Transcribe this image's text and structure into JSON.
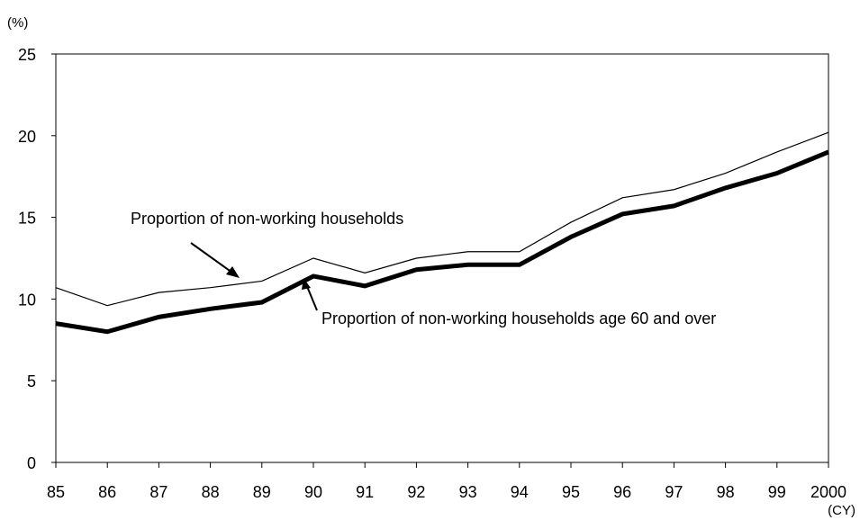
{
  "chart_data": {
    "type": "line",
    "y_unit": "(%)",
    "x_unit": "(CY)",
    "x": [
      "85",
      "86",
      "87",
      "88",
      "89",
      "90",
      "91",
      "92",
      "93",
      "94",
      "95",
      "96",
      "97",
      "98",
      "99",
      "2000"
    ],
    "ylim": [
      0,
      25
    ],
    "yticks": [
      "0",
      "5",
      "10",
      "15",
      "20",
      "25"
    ],
    "grid": false,
    "series": [
      {
        "name": "Proportion of non-working households",
        "values": [
          10.7,
          9.6,
          10.4,
          10.7,
          11.1,
          12.5,
          11.6,
          12.5,
          12.9,
          12.9,
          14.7,
          16.2,
          16.7,
          17.7,
          19.0,
          20.2
        ],
        "color": "#000000",
        "style": "thin"
      },
      {
        "name": "Proportion of non-working households age 60 and over",
        "values": [
          8.5,
          8.0,
          8.9,
          9.4,
          9.8,
          11.4,
          10.8,
          11.8,
          12.1,
          12.1,
          13.8,
          15.2,
          15.7,
          16.8,
          17.7,
          19.0
        ],
        "color": "#000000",
        "style": "thick"
      }
    ]
  }
}
